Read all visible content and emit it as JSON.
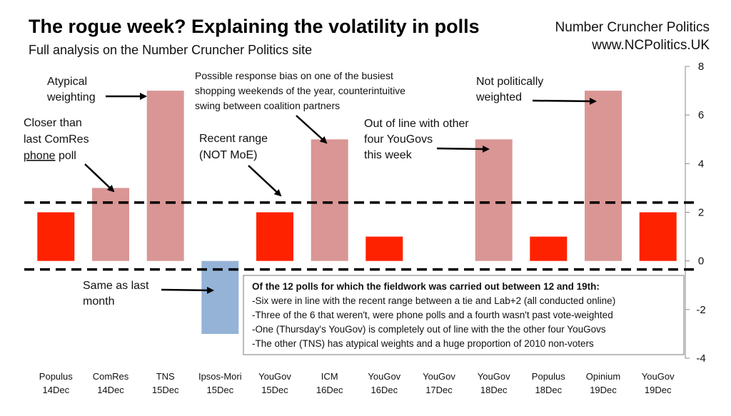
{
  "header": {
    "title": "The rogue week? Explaining the volatility in polls",
    "subtitle": "Full analysis on the Number Cruncher Politics site",
    "brand_line1": "Number Cruncher Politics",
    "brand_line2": "www.NCPolitics.UK"
  },
  "colors": {
    "normal": "#ff2200",
    "outlier": "#d99694",
    "negative": "#95b3d7"
  },
  "chart_data": {
    "type": "bar",
    "title": "The rogue week? Explaining the volatility in polls",
    "subtitle": "Full analysis on the Number Cruncher Politics site",
    "xlabel": "",
    "ylabel": "",
    "ylim": [
      -4,
      8
    ],
    "yticks": [
      -4,
      -2,
      0,
      2,
      4,
      6,
      8
    ],
    "y_axis_side": "right",
    "grid": false,
    "categories": [
      [
        "Populus",
        "14Dec"
      ],
      [
        "ComRes",
        "14Dec"
      ],
      [
        "TNS",
        "15Dec"
      ],
      [
        "Ipsos-Mori",
        "15Dec"
      ],
      [
        "YouGov",
        "15Dec"
      ],
      [
        "ICM",
        "16Dec"
      ],
      [
        "YouGov",
        "16Dec"
      ],
      [
        "YouGov",
        "17Dec"
      ],
      [
        "YouGov",
        "18Dec"
      ],
      [
        "Populus",
        "18Dec"
      ],
      [
        "Opinium",
        "19Dec"
      ],
      [
        "YouGov",
        "19Dec"
      ]
    ],
    "values": [
      2,
      3,
      7,
      -3,
      2,
      5,
      1,
      0,
      5,
      1,
      7,
      2
    ],
    "bar_color_keys": [
      "normal",
      "outlier",
      "outlier",
      "negative",
      "normal",
      "outlier",
      "normal",
      "normal",
      "outlier",
      "normal",
      "outlier",
      "normal"
    ],
    "reference_lines": [
      {
        "style": "dashed",
        "value": 2.4
      },
      {
        "style": "dashed",
        "value": -0.35
      }
    ],
    "annotations": {
      "atypical": [
        "Atypical",
        "weighting"
      ],
      "closer": [
        "Closer than",
        "last ComRes"
      ],
      "closer_u1": "phone",
      "closer_u2": " poll",
      "recent": [
        "Recent range",
        "(NOT MoE)"
      ],
      "response": [
        "Possible response bias on one of the busiest",
        "shopping weekends of the year, counterintuitive",
        "swing between coalition partners"
      ],
      "out_of_line": [
        "Out of line with other",
        "four YouGovs",
        "this week"
      ],
      "not_political": [
        "Not politically",
        "weighted"
      ],
      "same": [
        "Same as last",
        "month"
      ]
    },
    "summary_box": {
      "heading": "Of the 12 polls for which the fieldwork was carried out between 12 and 19th:",
      "lines": [
        "-Six were in line with the recent range between a tie and Lab+2 (all conducted online)",
        "-Three of the 6 that weren't, were phone polls and a fourth wasn't past vote-weighted",
        "-One (Thursday's YouGov) is completely out of line with the the other four YouGovs",
        "-The other (TNS) has atypical weights and a huge proportion of 2010 non-voters"
      ]
    }
  }
}
